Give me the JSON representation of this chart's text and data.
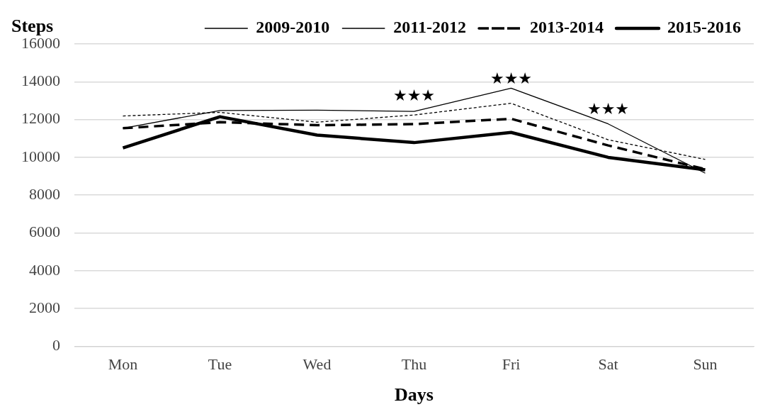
{
  "chart_data": {
    "type": "line",
    "xlabel": "Days",
    "ylabel": "Steps",
    "categories": [
      "Mon",
      "Tue",
      "Wed",
      "Thu",
      "Fri",
      "Sat",
      "Sun"
    ],
    "series": [
      {
        "name": "2009-2010",
        "color": "#000000",
        "line_style": "solid",
        "values": [
          11540,
          12480,
          12500,
          12430,
          13660,
          11770,
          9160
        ]
      },
      {
        "name": "2011-2012",
        "color": "#000000",
        "line_style": "dotted",
        "values": [
          12190,
          12380,
          11860,
          12240,
          12860,
          10930,
          9890
        ]
      },
      {
        "name": "2013-2014",
        "color": "#000000",
        "line_style": "dashed",
        "values": [
          11540,
          11860,
          11700,
          11760,
          12040,
          10630,
          9370
        ]
      },
      {
        "name": "2015-2016",
        "color": "#000000",
        "line_style": "solid",
        "values": [
          10500,
          12150,
          11180,
          10780,
          11320,
          10000,
          9340
        ]
      }
    ],
    "ylim": [
      0,
      16000
    ],
    "yticks": [
      0,
      2000,
      4000,
      6000,
      8000,
      10000,
      12000,
      14000,
      16000
    ],
    "grid": "y",
    "legend": "top",
    "marker": "none",
    "annotations": [
      "★★★",
      "★★★",
      "★★★"
    ]
  }
}
